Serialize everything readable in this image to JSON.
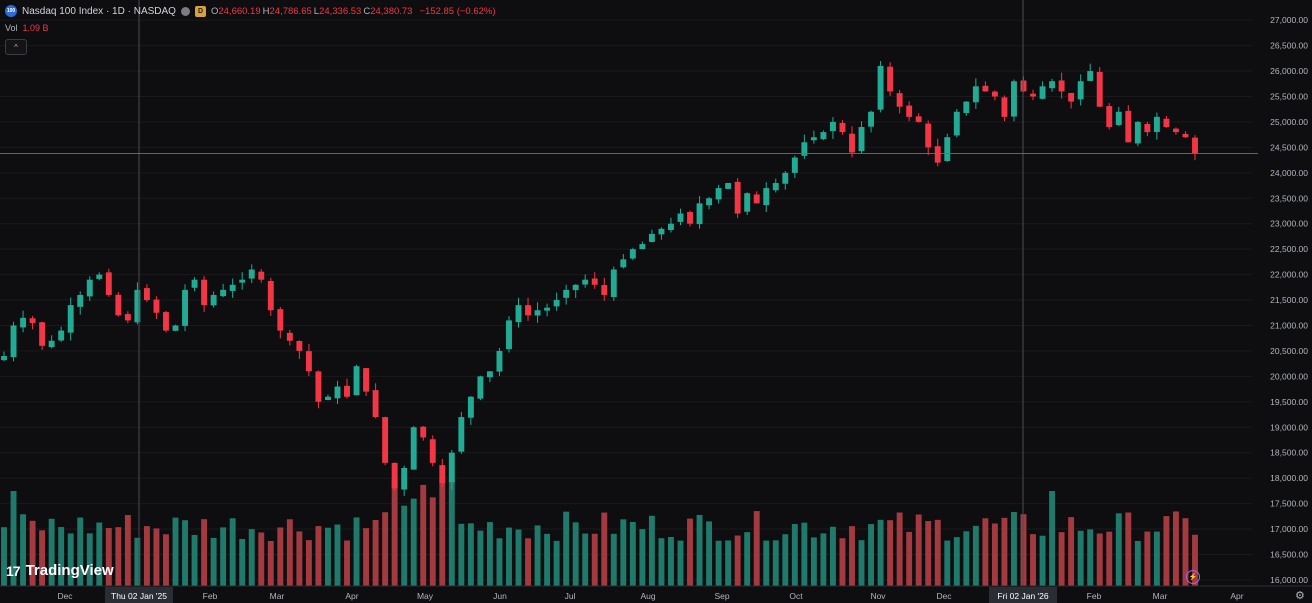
{
  "header": {
    "symbol_badge": "100",
    "title": "Nasdaq 100 Index · 1D · NASDAQ",
    "market_badge": "D",
    "ohlc": [
      {
        "key": "O",
        "value": "24,660.19"
      },
      {
        "key": "H",
        "value": "24,786.65"
      },
      {
        "key": "L",
        "value": "24,336.53"
      },
      {
        "key": "C",
        "value": "24,380.73"
      }
    ],
    "change": "−152.85 (−0.62%)",
    "vol_label": "Vol",
    "vol_value": "1.09 B",
    "collapse_glyph": "^"
  },
  "brand": {
    "logo": "17",
    "name": "TradingView"
  },
  "colors": {
    "up": "#22ab94",
    "down": "#f23645",
    "vol_up": "#1f7a6b",
    "vol_down": "#a33a3f",
    "background": "#0e0e10",
    "price_line": "#f23645"
  },
  "icons": [
    "symbol-logo-icon",
    "market-status-icon",
    "delayed-badge-icon",
    "collapse-icon",
    "lightning-icon",
    "gear-icon"
  ],
  "chart_data": {
    "type": "candlestick",
    "timeframe": "1D",
    "x_axis": {
      "labels": [
        "Dec",
        "Thu 02 Jan '25",
        "Feb",
        "Mar",
        "Apr",
        "May",
        "Jun",
        "Jul",
        "Aug",
        "Sep",
        "Oct",
        "Nov",
        "Dec",
        "Fri 02 Jan '26",
        "Feb",
        "Mar",
        "Apr"
      ],
      "highlighted": [
        "Thu 02 Jan '25",
        "Fri 02 Jan '26"
      ]
    },
    "y_axis": {
      "ticks": [
        "27,000.00",
        "26,500.00",
        "26,000.00",
        "25,500.00",
        "25,000.00",
        "24,500.00",
        "24,000.00",
        "23,500.00",
        "23,000.00",
        "22,500.00",
        "22,000.00",
        "21,500.00",
        "21,000.00",
        "20,500.00",
        "20,000.00",
        "19,500.00",
        "19,000.00",
        "18,500.00",
        "18,000.00",
        "17,500.00",
        "17,000.00",
        "16,500.00",
        "16,000.00"
      ],
      "range": [
        15900,
        27200
      ]
    },
    "last_price": {
      "value": 24380.73,
      "label": "24,380.73"
    },
    "volume_last": {
      "value": 1.09,
      "label": "1.09 B"
    },
    "closes": [
      [
        20400,
        21000,
        21150,
        21050,
        20600,
        20700,
        20900,
        21400,
        21600,
        21900,
        22000,
        21600,
        21200,
        21100,
        21700,
        21500,
        21250,
        20900,
        21000,
        21700,
        21900,
        21400,
        21600,
        21700,
        21800,
        21900,
        22100,
        21900,
        21300,
        20900,
        20700,
        20500,
        20100,
        19500,
        19600,
        19800,
        19600,
        20200,
        19700,
        19200,
        18300,
        17800,
        18200,
        19000,
        18800,
        18300,
        17900,
        18500,
        19200,
        19600,
        20000,
        20100,
        20500
      ],
      [
        21100,
        21400,
        21200,
        21300,
        21350,
        21500,
        21700,
        21800,
        21900,
        21800,
        21600,
        22100,
        22300,
        22500,
        22600,
        22800,
        22900,
        23000,
        23200,
        23000,
        23400,
        23500,
        23700,
        23800,
        23200,
        23600,
        23400,
        23700,
        23800,
        24000,
        24300,
        24600,
        24700,
        24800,
        25000,
        24800,
        24400,
        24900,
        25200,
        26100,
        25600,
        25300,
        25100,
        25000,
        24500,
        24200,
        24700,
        25200,
        25400,
        25700,
        25600,
        25500,
        25100,
        25800,
        25600,
        25500,
        25700,
        25800,
        25600,
        25400,
        25800,
        26000,
        25300,
        24900,
        25200,
        24600,
        25000,
        24800,
        25100,
        24900,
        24800,
        24700,
        24380.73
      ]
    ]
  }
}
